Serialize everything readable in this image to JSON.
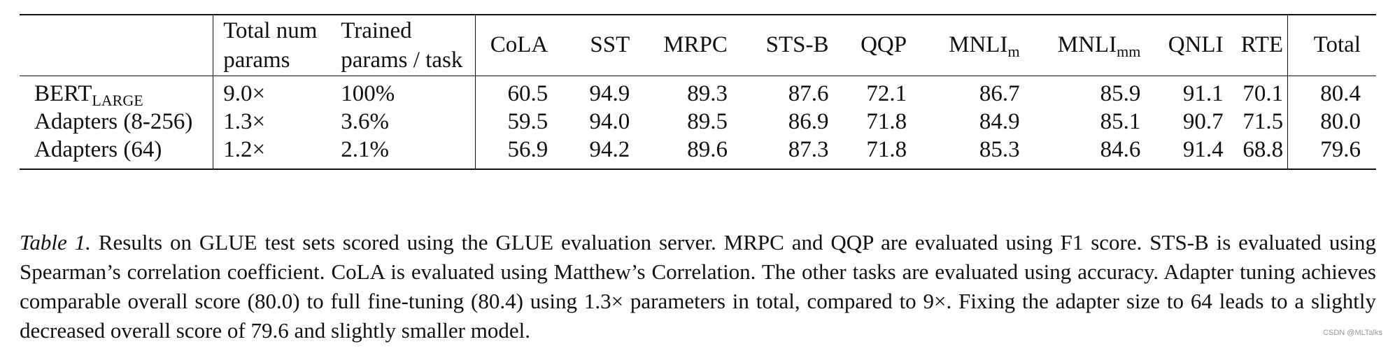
{
  "table": {
    "headers": {
      "model": "",
      "total_params_line1": "Total num",
      "total_params_line2": "params",
      "trained_params_line1": "Trained",
      "trained_params_line2": "params / task",
      "cola": "CoLA",
      "sst": "SST",
      "mrpc": "MRPC",
      "stsb": "STS-B",
      "qqp": "QQP",
      "mnli_m_base": "MNLI",
      "mnli_m_sub": "m",
      "mnli_mm_base": "MNLI",
      "mnli_mm_sub": "mm",
      "qnli": "QNLI",
      "rte": "RTE",
      "total": "Total"
    },
    "rows": [
      {
        "model_base": "BERT",
        "model_sub": "LARGE",
        "total_params": "9.0×",
        "trained_params": "100%",
        "cola": "60.5",
        "sst": "94.9",
        "mrpc": "89.3",
        "stsb": "87.6",
        "qqp": "72.1",
        "mnli_m": "86.7",
        "mnli_mm": "85.9",
        "qnli": "91.1",
        "rte": "70.1",
        "total": "80.4"
      },
      {
        "model_base": "Adapters (8-256)",
        "model_sub": "",
        "total_params": "1.3×",
        "trained_params": "3.6%",
        "cola": "59.5",
        "sst": "94.0",
        "mrpc": "89.5",
        "stsb": "86.9",
        "qqp": "71.8",
        "mnli_m": "84.9",
        "mnli_mm": "85.1",
        "qnli": "90.7",
        "rte": "71.5",
        "total": "80.0"
      },
      {
        "model_base": "Adapters (64)",
        "model_sub": "",
        "total_params": "1.2×",
        "trained_params": "2.1%",
        "cola": "56.9",
        "sst": "94.2",
        "mrpc": "89.6",
        "stsb": "87.3",
        "qqp": "71.8",
        "mnli_m": "85.3",
        "mnli_mm": "84.6",
        "qnli": "91.4",
        "rte": "68.8",
        "total": "79.6"
      }
    ]
  },
  "caption": {
    "label": "Table 1.",
    "text": "Results on GLUE test sets scored using the GLUE evaluation server. MRPC and QQP are evaluated using F1 score. STS-B is evaluated using Spearman’s correlation coefficient. CoLA is evaluated using Matthew’s Correlation. The other tasks are evaluated using accuracy. Adapter tuning achieves comparable overall score (80.0) to full fine-tuning (80.4) using 1.3× parameters in total, compared to 9×. Fixing the adapter size to 64 leads to a slightly decreased overall score of 79.6 and slightly smaller model."
  },
  "watermark": "CSDN @MLTalks"
}
